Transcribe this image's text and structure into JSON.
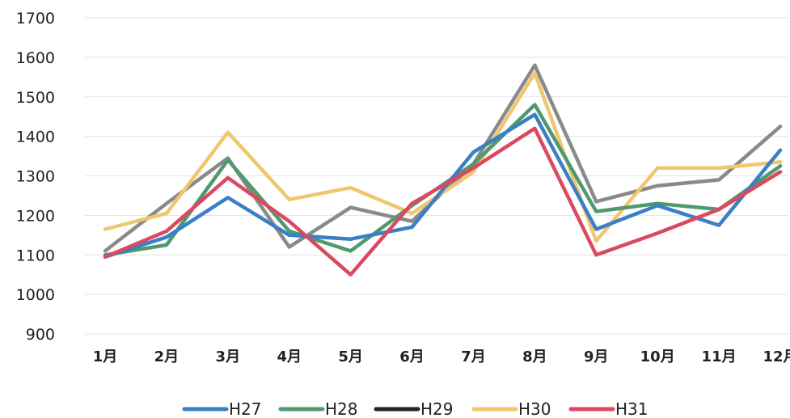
{
  "chart_data": {
    "type": "line",
    "categories": [
      "1月",
      "2月",
      "3月",
      "4月",
      "5月",
      "6月",
      "7月",
      "8月",
      "9月",
      "10月",
      "11月",
      "12月"
    ],
    "ylim": [
      900,
      1700
    ],
    "yticks": [
      900,
      1000,
      1100,
      1200,
      1300,
      1400,
      1500,
      1600,
      1700
    ],
    "grid": true,
    "legend_position": "bottom",
    "series": [
      {
        "name": "H27",
        "color": "#3b7fc4",
        "values": [
          1095,
          1145,
          1245,
          1150,
          1140,
          1170,
          1360,
          1455,
          1165,
          1225,
          1175,
          1365
        ]
      },
      {
        "name": "H28",
        "color": "#4e9a6e",
        "values": [
          1100,
          1125,
          1340,
          1160,
          1110,
          1225,
          1330,
          1480,
          1210,
          1230,
          1215,
          1325
        ]
      },
      {
        "name": "H29",
        "color": "#8a8a8a",
        "legend_color": "#222222",
        "values": [
          1110,
          1230,
          1345,
          1120,
          1220,
          1185,
          1330,
          1580,
          1235,
          1275,
          1290,
          1425
        ]
      },
      {
        "name": "H30",
        "color": "#f0c66e",
        "values": [
          1165,
          1205,
          1410,
          1240,
          1270,
          1205,
          1310,
          1560,
          1135,
          1320,
          1320,
          1335
        ]
      },
      {
        "name": "H31",
        "color": "#d9495f",
        "values": [
          1095,
          1160,
          1295,
          1185,
          1050,
          1230,
          1320,
          1420,
          1100,
          1155,
          1215,
          1310
        ]
      }
    ]
  }
}
